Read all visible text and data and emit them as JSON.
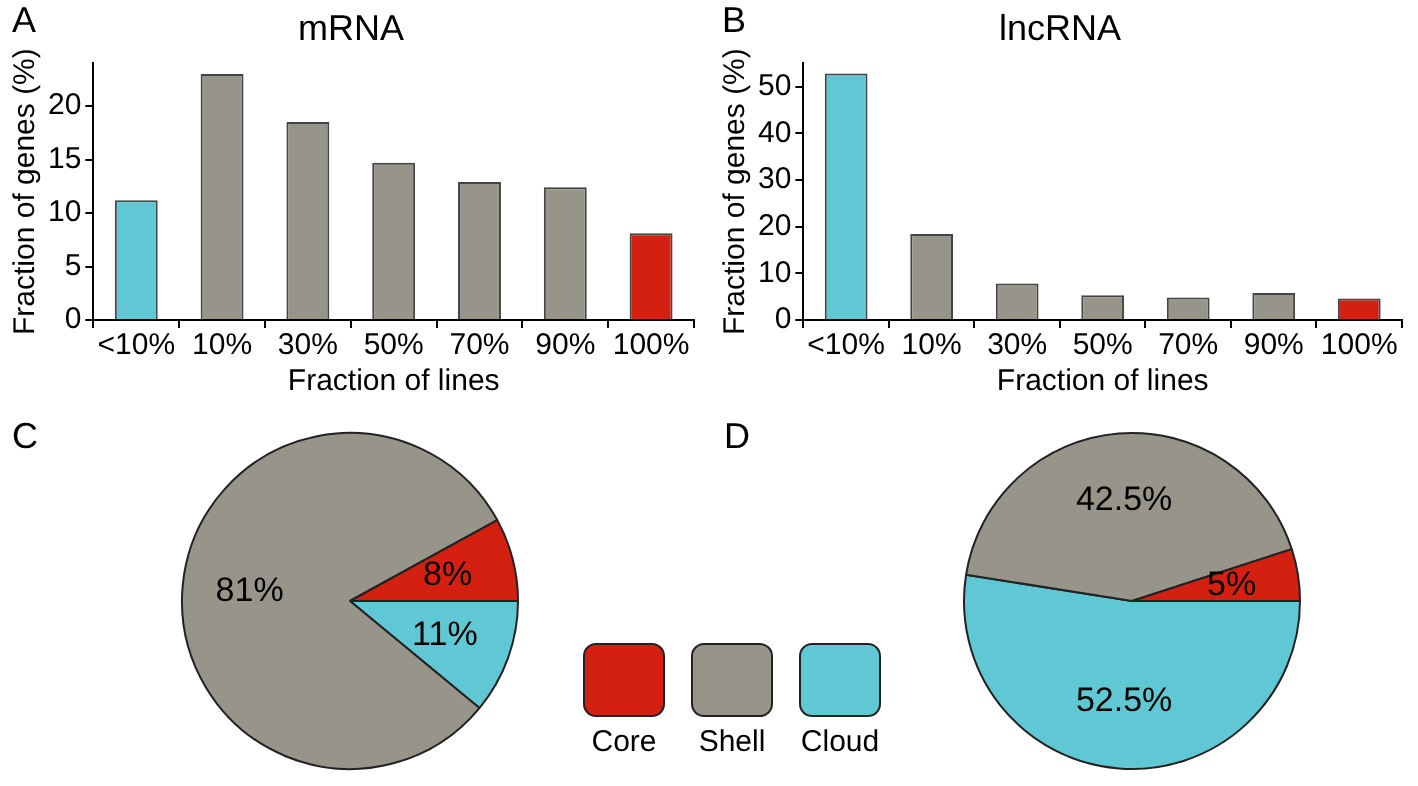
{
  "chart_data": [
    {
      "type": "bar",
      "title": "mRNA",
      "xlabel": "Fraction of lines",
      "ylabel": "Fraction of genes (%)",
      "annotations": [
        "A"
      ],
      "categories": [
        "<10%",
        "10%",
        "30%",
        "50%",
        "70%",
        "90%",
        "100%"
      ],
      "values": [
        11.2,
        23.0,
        18.5,
        14.7,
        12.9,
        12.4,
        8.1
      ],
      "colors": [
        "#5fc8d4",
        "#97958a",
        "#97958a",
        "#97958a",
        "#97958a",
        "#97958a",
        "#d42011"
      ],
      "ylim": [
        0,
        24
      ],
      "yticks": [
        0,
        5,
        10,
        15,
        20
      ],
      "grid": false
    },
    {
      "type": "bar",
      "title": "lncRNA",
      "xlabel": "Fraction of lines",
      "ylabel": "Fraction of genes (%)",
      "annotations": [
        "B"
      ],
      "categories": [
        "<10%",
        "10%",
        "30%",
        "50%",
        "70%",
        "90%",
        "100%"
      ],
      "values": [
        52.8,
        18.4,
        7.8,
        5.3,
        4.8,
        5.8,
        4.6
      ],
      "colors": [
        "#5fc8d4",
        "#97958a",
        "#97958a",
        "#97958a",
        "#97958a",
        "#97958a",
        "#d42011"
      ],
      "ylim": [
        0,
        55
      ],
      "yticks": [
        0,
        10,
        20,
        30,
        40,
        50
      ],
      "grid": false
    },
    {
      "type": "pie",
      "annotations": [
        "C"
      ],
      "categories": [
        "Core",
        "Shell",
        "Cloud"
      ],
      "values": [
        8,
        81,
        11
      ],
      "colors": [
        "#d42011",
        "#97958a",
        "#5fc8d4"
      ],
      "value_labels": [
        "8%",
        "81%",
        "11%"
      ],
      "legend": "right"
    },
    {
      "type": "pie",
      "annotations": [
        "D"
      ],
      "categories": [
        null,
        null,
        null
      ],
      "values": [
        5,
        42.5,
        52.5
      ],
      "colors": [
        "#d42011",
        "#97958a",
        "#5fc8d4"
      ],
      "value_labels": [
        "5%",
        "42.5%",
        "52.5%"
      ]
    }
  ]
}
